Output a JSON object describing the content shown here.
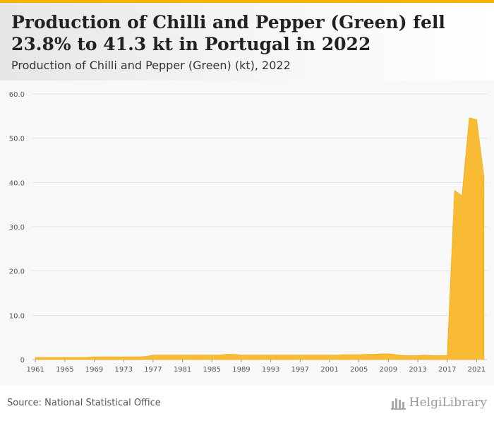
{
  "header": {
    "title": "Production of Chilli and Pepper (Green) fell 23.8% to 41.3 kt in Portugal in 2022",
    "subtitle": "Production of Chilli and Pepper (Green) (kt), 2022"
  },
  "footer": {
    "source": "Source: National Statistical Office",
    "logo_text": "HelgiLibrary"
  },
  "colors": {
    "accent": "#f5b301",
    "area_fill": "#f9bb33",
    "area_stroke": "#f0a500"
  },
  "chart_data": {
    "type": "area",
    "title": "",
    "xlabel": "",
    "ylabel": "",
    "ylim": [
      0,
      60
    ],
    "yticks": [
      "0",
      "10.0",
      "20.0",
      "30.0",
      "40.0",
      "50.0",
      "60.0"
    ],
    "xticks": [
      "1961",
      "1965",
      "1969",
      "1973",
      "1977",
      "1981",
      "1985",
      "1989",
      "1993",
      "1997",
      "2001",
      "2005",
      "2009",
      "2013",
      "2017",
      "2021"
    ],
    "grid": true,
    "x": [
      1961,
      1962,
      1963,
      1964,
      1965,
      1966,
      1967,
      1968,
      1969,
      1970,
      1971,
      1972,
      1973,
      1974,
      1975,
      1976,
      1977,
      1978,
      1979,
      1980,
      1981,
      1982,
      1983,
      1984,
      1985,
      1986,
      1987,
      1988,
      1989,
      1990,
      1991,
      1992,
      1993,
      1994,
      1995,
      1996,
      1997,
      1998,
      1999,
      2000,
      2001,
      2002,
      2003,
      2004,
      2005,
      2006,
      2007,
      2008,
      2009,
      2010,
      2011,
      2012,
      2013,
      2014,
      2015,
      2016,
      2017,
      2018,
      2019,
      2020,
      2021,
      2022
    ],
    "series": [
      {
        "values": [
          0.5,
          0.5,
          0.5,
          0.5,
          0.5,
          0.5,
          0.5,
          0.5,
          0.6,
          0.6,
          0.6,
          0.6,
          0.6,
          0.6,
          0.6,
          0.7,
          1.0,
          1.0,
          1.0,
          1.0,
          1.0,
          1.0,
          1.0,
          1.0,
          1.0,
          1.0,
          1.2,
          1.2,
          1.0,
          1.0,
          1.0,
          1.0,
          1.0,
          1.0,
          1.0,
          1.0,
          1.0,
          1.0,
          1.0,
          1.0,
          1.0,
          1.0,
          1.1,
          1.1,
          1.1,
          1.2,
          1.2,
          1.3,
          1.3,
          1.1,
          0.9,
          0.9,
          0.9,
          1.0,
          0.9,
          0.9,
          0.9,
          38.2,
          37.0,
          54.6,
          54.2,
          41.3
        ]
      }
    ]
  }
}
